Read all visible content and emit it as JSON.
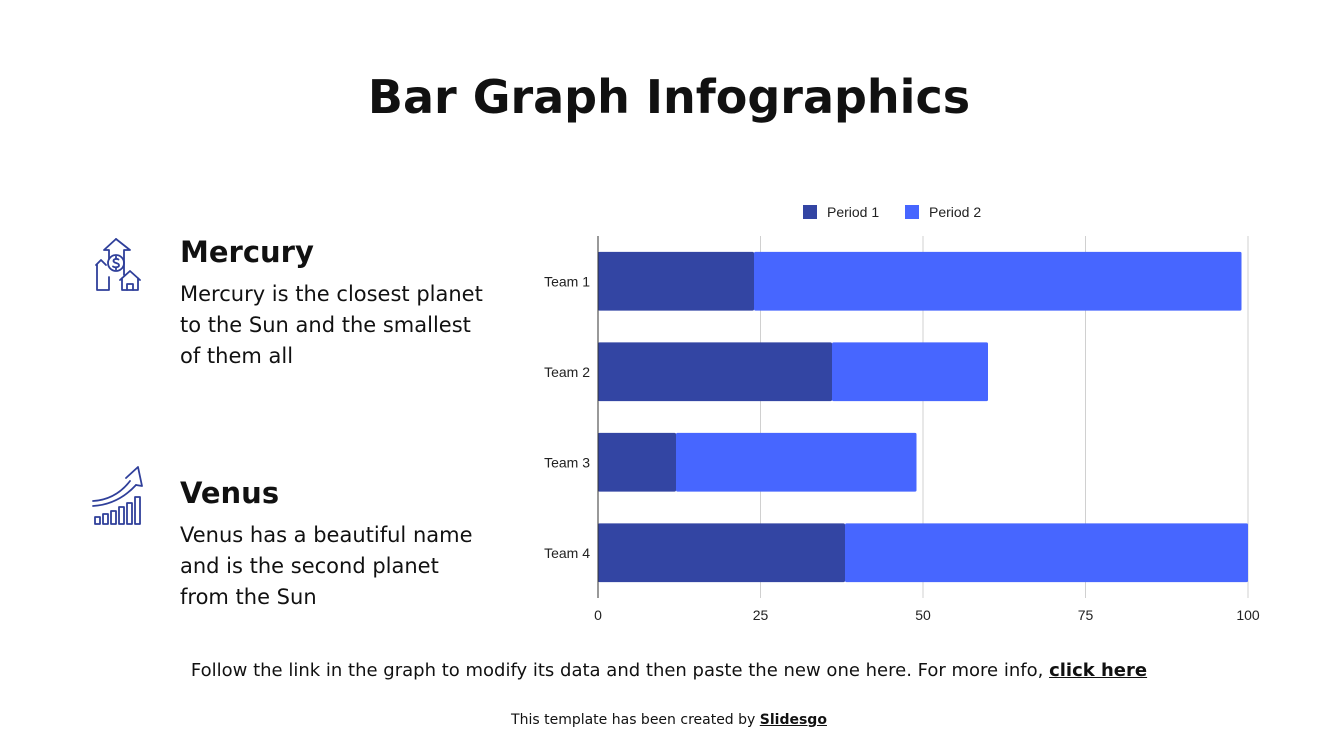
{
  "slide": {
    "title": "Bar Graph Infographics"
  },
  "items": [
    {
      "icon": "money-growth-icon",
      "heading": "Mercury",
      "text": "Mercury is the closest planet to the Sun and the smallest of them all"
    },
    {
      "icon": "growth-chart-icon",
      "heading": "Venus",
      "text": "Venus has a beautiful name and is the second planet from the Sun"
    }
  ],
  "footer": {
    "note": "Follow the link in the graph to modify its data and then paste the new one here. For more info,",
    "link": "click here",
    "credit_prefix": "This template has been created by",
    "credit_brand": "Slidesgo"
  },
  "chart_data": {
    "type": "bar",
    "orientation": "horizontal",
    "stacked": true,
    "categories": [
      "Team 1",
      "Team 2",
      "Team 3",
      "Team 4"
    ],
    "series": [
      {
        "name": "Period 1",
        "values": [
          24,
          36,
          12,
          38
        ],
        "color": "#3345A3"
      },
      {
        "name": "Period 2",
        "values": [
          75,
          24,
          37,
          62
        ],
        "color": "#4766FF"
      }
    ],
    "xlim": [
      0,
      100
    ],
    "xticks": [
      0,
      25,
      50,
      75,
      100
    ],
    "legend": "top",
    "grid": true
  }
}
